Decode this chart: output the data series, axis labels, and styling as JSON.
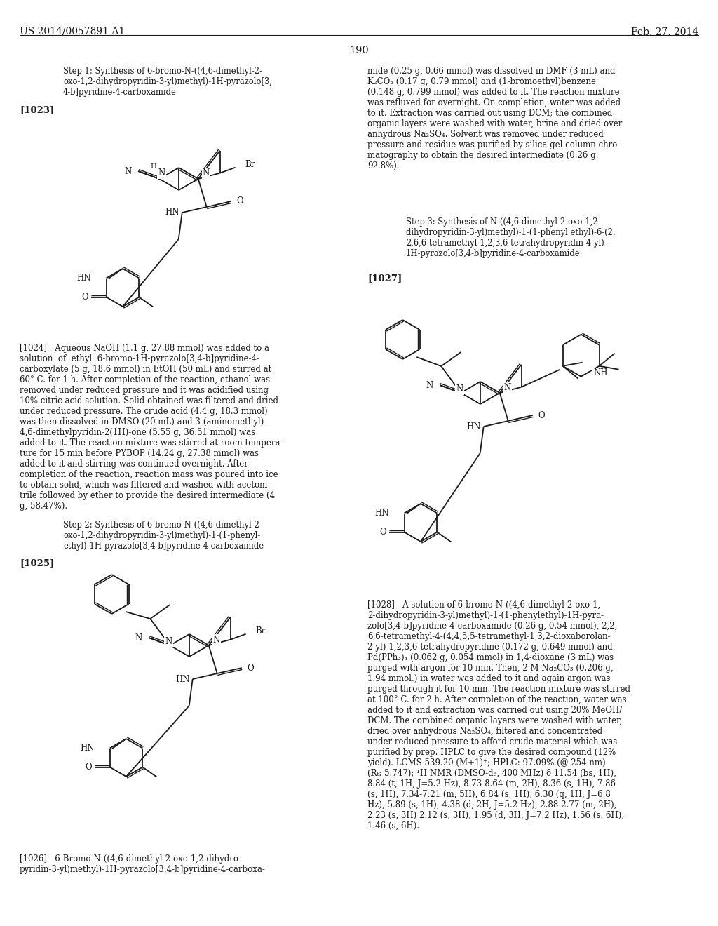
{
  "background_color": "#ffffff",
  "page_number": "190",
  "patent_number": "US 2014/0057891 A1",
  "patent_date": "Feb. 27, 2014",
  "text_color": "#1a1a1a",
  "font_size_body": 8.5,
  "font_size_step": 8.3,
  "font_size_ref": 9.5,
  "font_size_header": 10.0,
  "col_div": 0.502
}
